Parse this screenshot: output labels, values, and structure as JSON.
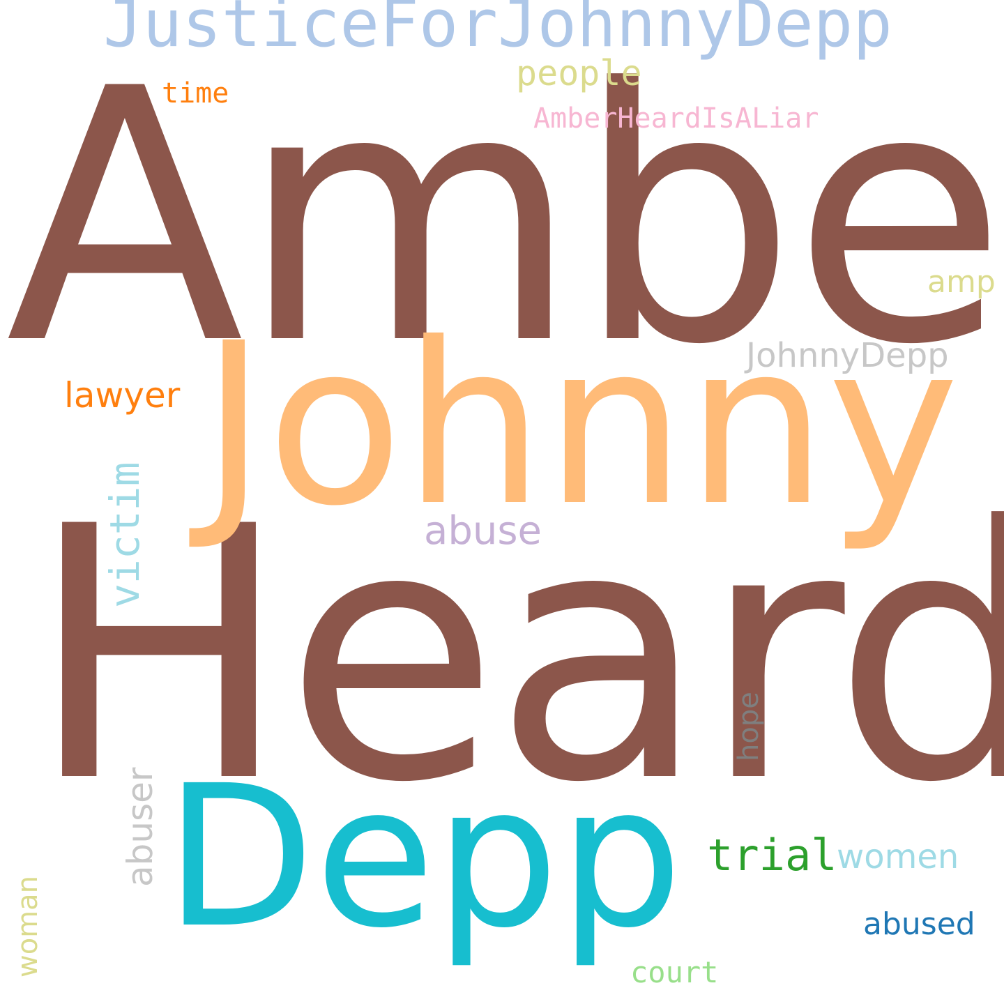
{
  "words": [
    {
      "text": "Amber",
      "color": "#8c564b"
    },
    {
      "text": "Heard",
      "color": "#8c564b"
    },
    {
      "text": "Johnny",
      "color": "#ffbb78"
    },
    {
      "text": "Depp",
      "color": "#17becf"
    },
    {
      "text": "JusticeForJohnnyDepp",
      "color": "#aec7e8"
    },
    {
      "text": "people",
      "color": "#dbdb8d"
    },
    {
      "text": "time",
      "color": "#ff7f0e"
    },
    {
      "text": "AmberHeardIsALiar",
      "color": "#f7b6d2"
    },
    {
      "text": "amp",
      "color": "#dbdb8d"
    },
    {
      "text": "JohnnyDepp",
      "color": "#c7c7c7"
    },
    {
      "text": "lawyer",
      "color": "#ff7f0e"
    },
    {
      "text": "victim",
      "color": "#9edae5"
    },
    {
      "text": "abuse",
      "color": "#c5b0d5"
    },
    {
      "text": "hope",
      "color": "#7f7f7f"
    },
    {
      "text": "abuser",
      "color": "#c7c7c7"
    },
    {
      "text": "trial",
      "color": "#2ca02c"
    },
    {
      "text": "women",
      "color": "#9edae5"
    },
    {
      "text": "woman",
      "color": "#dbdb8d"
    },
    {
      "text": "abused",
      "color": "#1f77b4"
    },
    {
      "text": "court",
      "color": "#98df8a"
    }
  ]
}
